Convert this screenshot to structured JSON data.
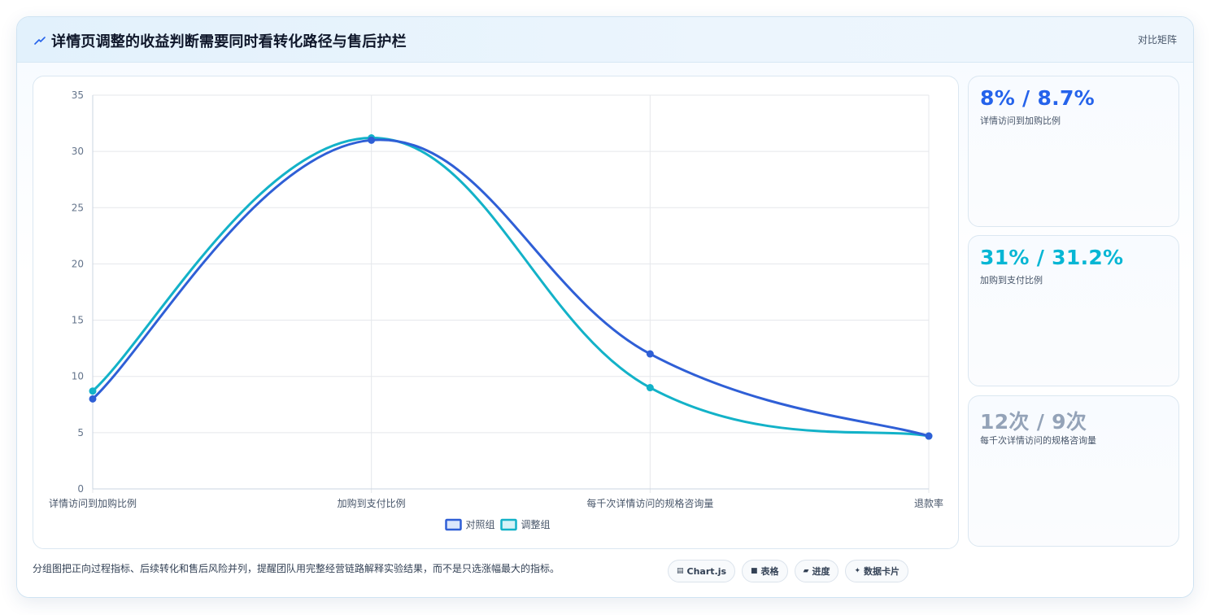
{
  "header": {
    "title": "详情页调整的收益判断需要同时看转化路径与售后护栏",
    "tag": "对比矩阵"
  },
  "kpis": [
    {
      "value": "8% / 8.7%",
      "label": "详情访问到加购比例",
      "color": "#2563eb"
    },
    {
      "value": "31% / 31.2%",
      "label": "加购到支付比例",
      "color": "#06b6d4"
    },
    {
      "value": "12次 / 9次",
      "label": "每千次详情访问的规格咨询量",
      "color": "#94a3b8"
    }
  ],
  "footer": {
    "text": "分组图把正向过程指标、后续转化和售后风险并列，提醒团队用完整经营链路解释实验结果，而不是只选涨幅最大的指标。",
    "chips": [
      {
        "icon": "chart-icon",
        "glyph": "▤",
        "label": "Chart.js"
      },
      {
        "icon": "table-icon",
        "glyph": "■",
        "label": "表格"
      },
      {
        "icon": "progress-icon",
        "glyph": "▰",
        "label": "进度"
      },
      {
        "icon": "sparkle-icon",
        "glyph": "✦",
        "label": "数据卡片"
      }
    ]
  },
  "chart_data": {
    "type": "line",
    "categories": [
      "详情访问到加购比例",
      "加购到支付比例",
      "每千次详情访问的规格咨询量",
      "退款率"
    ],
    "series": [
      {
        "name": "对照组",
        "values": [
          8,
          31,
          12,
          4.7
        ],
        "color": "#2f5fd6"
      },
      {
        "name": "调整组",
        "values": [
          8.7,
          31.2,
          9,
          4.7
        ],
        "color": "#13b2c8"
      }
    ],
    "ylim": [
      0,
      35
    ],
    "yticks": [
      0,
      5,
      10,
      15,
      20,
      25,
      30,
      35
    ],
    "grid": true,
    "legend": "bottom"
  }
}
